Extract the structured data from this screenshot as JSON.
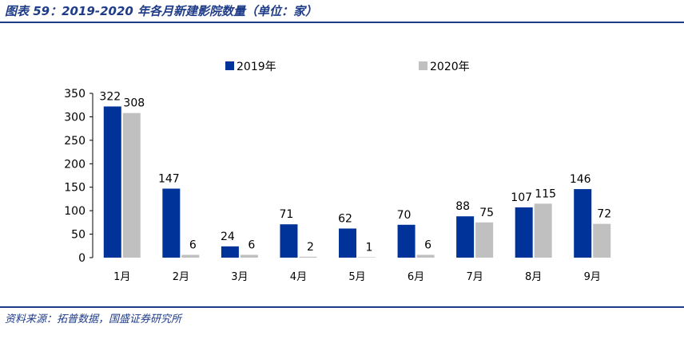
{
  "figure": {
    "title": "图表 59：2019-2020 年各月新建影院数量（单位：家）",
    "source": "资料来源：拓普数据，国盛证券研究所"
  },
  "chart_data": {
    "type": "bar",
    "categories": [
      "1月",
      "2月",
      "3月",
      "4月",
      "5月",
      "6月",
      "7月",
      "8月",
      "9月"
    ],
    "series": [
      {
        "name": "2019年",
        "color": "#003399",
        "values": [
          322,
          147,
          24,
          71,
          62,
          70,
          88,
          107,
          146
        ]
      },
      {
        "name": "2020年",
        "color": "#c0c0c0",
        "values": [
          308,
          6,
          6,
          2,
          1,
          6,
          75,
          115,
          72
        ]
      }
    ],
    "yticks": [
      0,
      50,
      100,
      150,
      200,
      250,
      300,
      350
    ],
    "ylim": [
      0,
      350
    ],
    "legend_position": "top",
    "grid": false
  }
}
